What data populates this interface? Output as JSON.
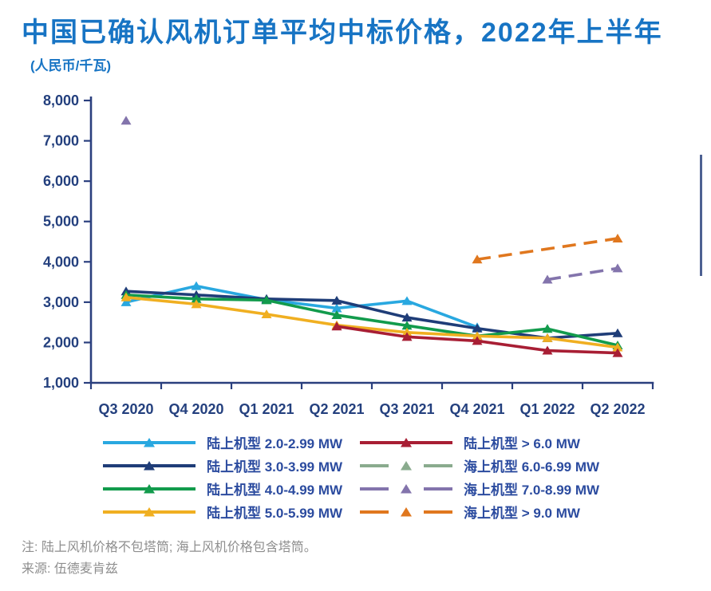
{
  "title": "中国已确认风机订单平均中标价格，2022年上半年",
  "subtitle": "(人民币/千瓦)",
  "colors": {
    "title_blue": "#1774C4",
    "axis_navy": "#24407E",
    "legend_text_navy": "#2B4B9F",
    "footnote_gray": "#8E8E8E"
  },
  "chart_data": {
    "type": "line",
    "title": "中国已确认风机订单平均中标价格，2022年上半年",
    "ylabel": "人民币/千瓦",
    "xlabel": "",
    "grid": false,
    "legend_position": "bottom",
    "axis_color": "#2A3F7E",
    "ylim": [
      1000,
      8000
    ],
    "y_tick_step": 1000,
    "y_ticks": [
      "1,000",
      "2,000",
      "3,000",
      "4,000",
      "5,000",
      "6,000",
      "7,000",
      "8,000"
    ],
    "categories": [
      "Q3 2020",
      "Q4 2020",
      "Q1 2021",
      "Q2 2021",
      "Q3 2021",
      "Q4 2021",
      "Q1 2022",
      "Q2 2022"
    ],
    "series": [
      {
        "name": "陆上机型 2.0-2.99 MW",
        "color": "#29A8E0",
        "line": "solid",
        "marker": "triangle",
        "values": [
          3000,
          3400,
          3060,
          2850,
          3030,
          2380,
          null,
          null
        ]
      },
      {
        "name": "陆上机型 3.0-3.99 MW",
        "color": "#1F3D78",
        "line": "solid",
        "marker": "triangle",
        "values": [
          3270,
          3180,
          3080,
          3040,
          2620,
          2350,
          2110,
          2230
        ]
      },
      {
        "name": "陆上机型 4.0-4.99 MW",
        "color": "#129B4C",
        "line": "solid",
        "marker": "triangle",
        "values": [
          3180,
          3080,
          3050,
          2680,
          2420,
          2160,
          2340,
          1930
        ]
      },
      {
        "name": "陆上机型 5.0-5.99 MW",
        "color": "#F0AF21",
        "line": "solid",
        "marker": "triangle",
        "values": [
          3120,
          2950,
          2700,
          2430,
          2250,
          2160,
          2110,
          1880
        ]
      },
      {
        "name": "陆上机型 > 6.0 MW",
        "color": "#A81E34",
        "line": "solid",
        "marker": "triangle",
        "values": [
          null,
          null,
          null,
          2400,
          2140,
          2040,
          1800,
          1740
        ]
      },
      {
        "name": "海上机型 6.0-6.99 MW",
        "color": "#8AAB8E",
        "line": "dashed",
        "marker": "triangle",
        "values": [
          null,
          null,
          null,
          null,
          null,
          null,
          null,
          null
        ]
      },
      {
        "name": "海上机型 7.0-8.99 MW",
        "color": "#8374AC",
        "line": "dashed",
        "marker": "triangle",
        "values": [
          7500,
          null,
          null,
          null,
          null,
          null,
          3560,
          3840
        ]
      },
      {
        "name": "海上机型 > 9.0 MW",
        "color": "#E0771E",
        "line": "dashed",
        "marker": "triangle",
        "values": [
          null,
          null,
          null,
          null,
          null,
          4060,
          null,
          4580
        ]
      }
    ]
  },
  "footer": {
    "note": "注: 陆上风机价格不包塔筒; 海上风机价格包含塔筒。",
    "source": "来源: 伍德麦肯兹"
  }
}
